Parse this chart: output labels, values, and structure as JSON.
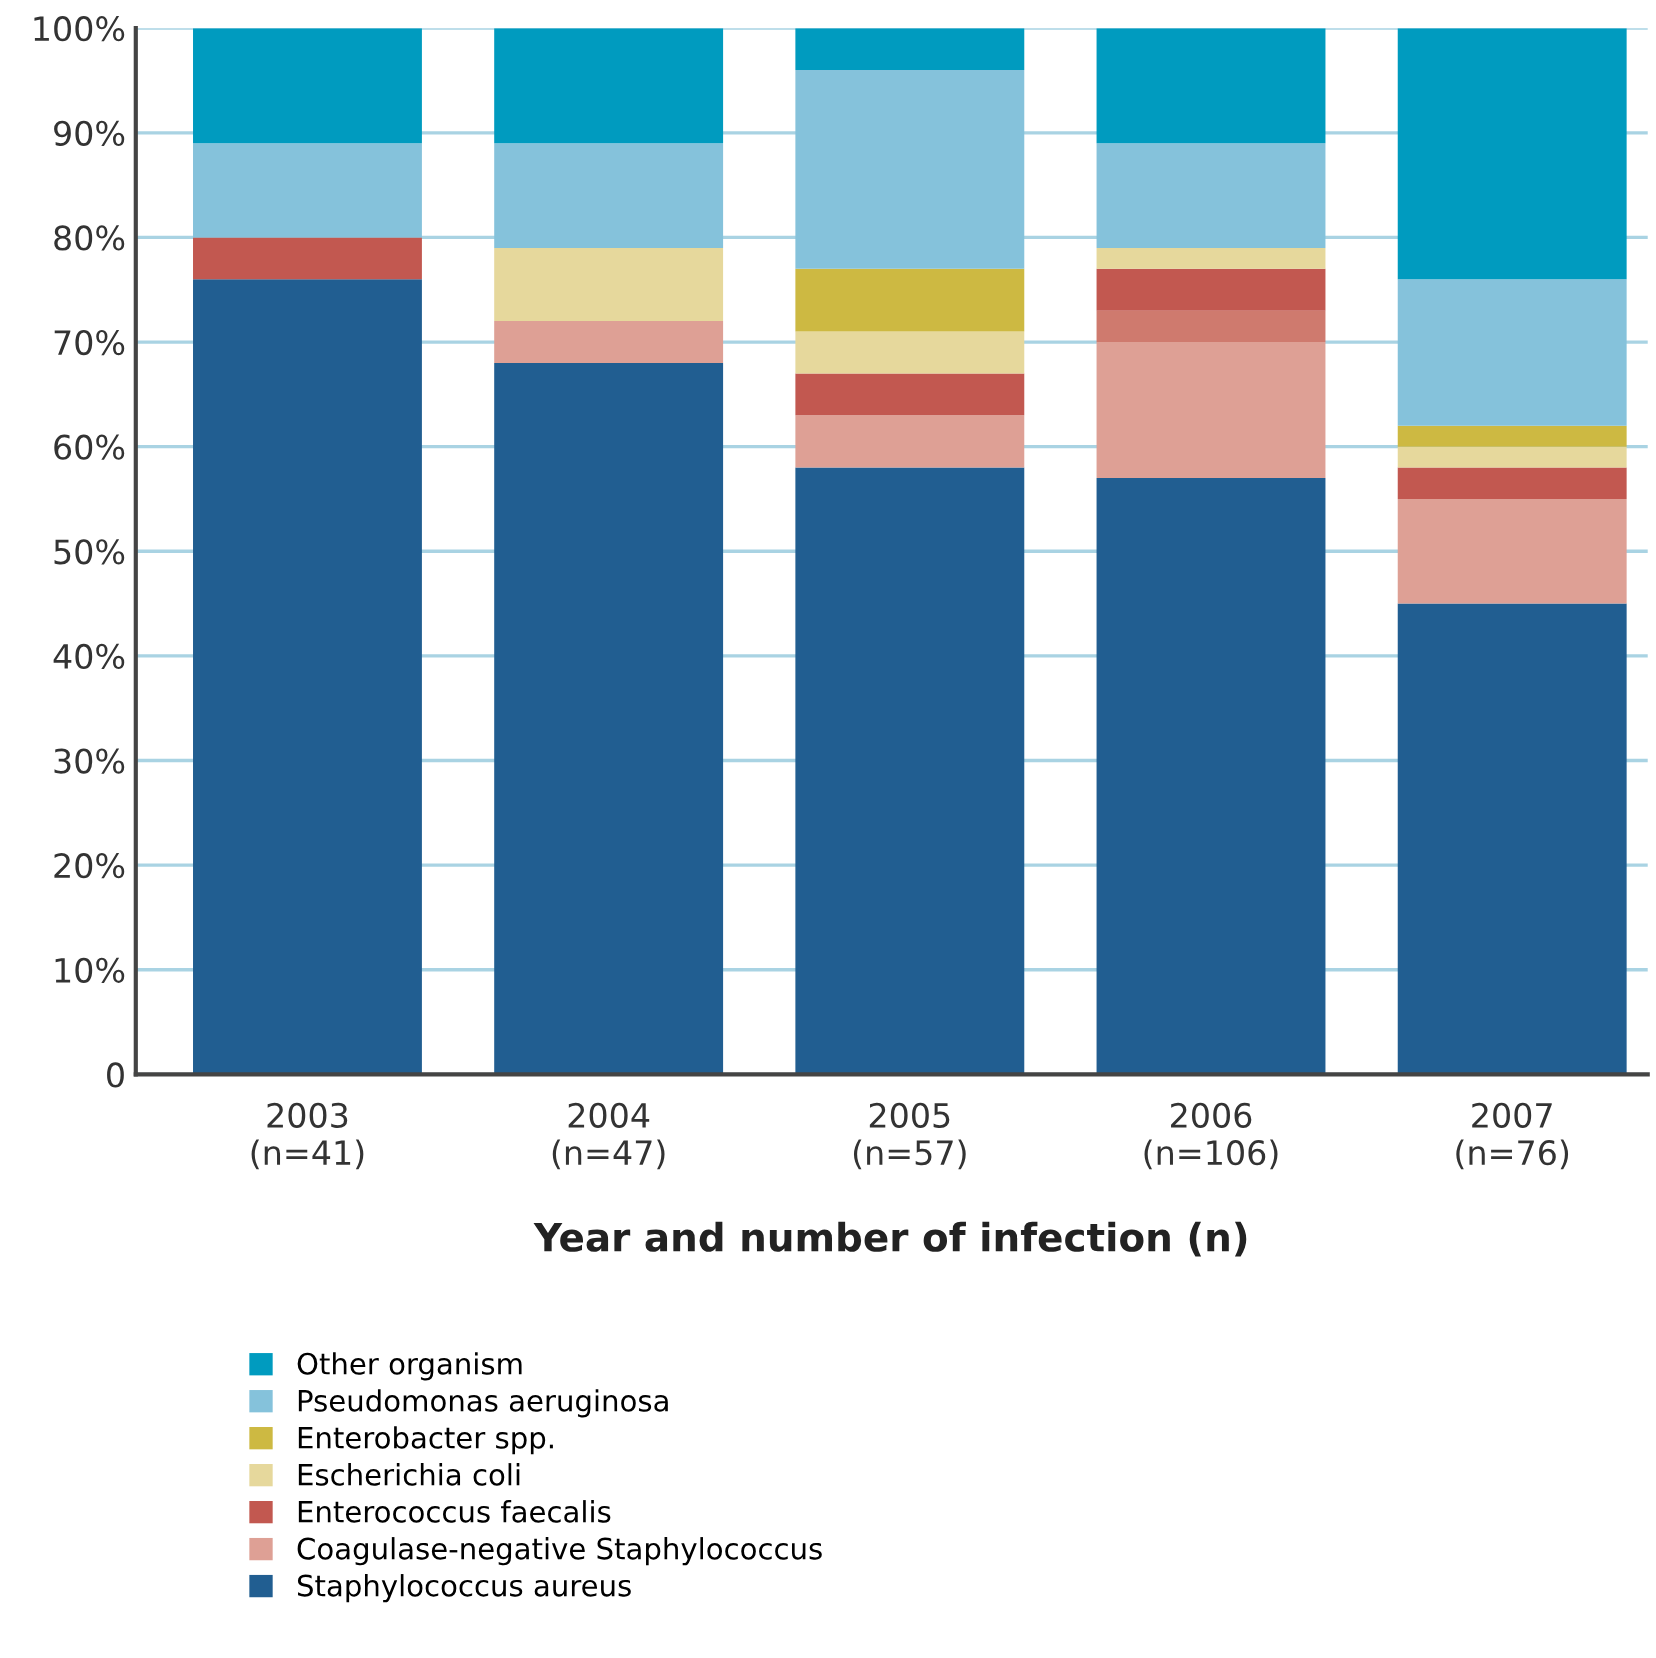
{
  "chart_data": {
    "type": "bar",
    "stacked": true,
    "categories": [
      "2003\n(n=41)",
      "2004\n(n=47)",
      "2005\n(n=57)",
      "2006\n(n=106)",
      "2007\n(n=76)"
    ],
    "xlabel": "Year and number of infection (n)",
    "ylim": [
      0,
      100
    ],
    "yticks": [
      {
        "value": 0,
        "label": "0"
      },
      {
        "value": 10,
        "label": "10%"
      },
      {
        "value": 20,
        "label": "20%"
      },
      {
        "value": 30,
        "label": "30%"
      },
      {
        "value": 40,
        "label": "40%"
      },
      {
        "value": 50,
        "label": "50%"
      },
      {
        "value": 60,
        "label": "60%"
      },
      {
        "value": 70,
        "label": "70%"
      },
      {
        "value": 80,
        "label": "80%"
      },
      {
        "value": 90,
        "label": "90%"
      },
      {
        "value": 100,
        "label": "100%"
      }
    ],
    "grid": "y",
    "legend": "bottom",
    "series": [
      {
        "name": "Staphylococcus aureus",
        "color": "#215e91",
        "values": [
          76,
          68,
          58,
          57,
          45
        ]
      },
      {
        "name": "Coagulase-negative Staphylococcus",
        "color": "#dea095",
        "values": [
          null,
          4,
          5,
          13,
          10
        ]
      },
      {
        "color": "#cf7a6e",
        "values": [
          null,
          null,
          null,
          3,
          null
        ]
      },
      {
        "name": "Enterococcus faecalis",
        "color": "#c25850",
        "values": [
          4,
          null,
          4,
          4,
          3
        ]
      },
      {
        "name": "Escherichia coli",
        "color": "#e6d89c",
        "values": [
          null,
          7,
          4,
          2,
          2
        ]
      },
      {
        "name": "Enterobacter spp.",
        "color": "#cdb942",
        "values": [
          null,
          null,
          6,
          null,
          2
        ]
      },
      {
        "name": "Pseudomonas aeruginosa",
        "color": "#85c2db",
        "values": [
          9,
          10,
          19,
          10,
          14
        ]
      },
      {
        "name": "Other organism",
        "color": "#009bbf",
        "values": [
          11,
          11,
          4,
          11,
          24
        ]
      }
    ]
  }
}
